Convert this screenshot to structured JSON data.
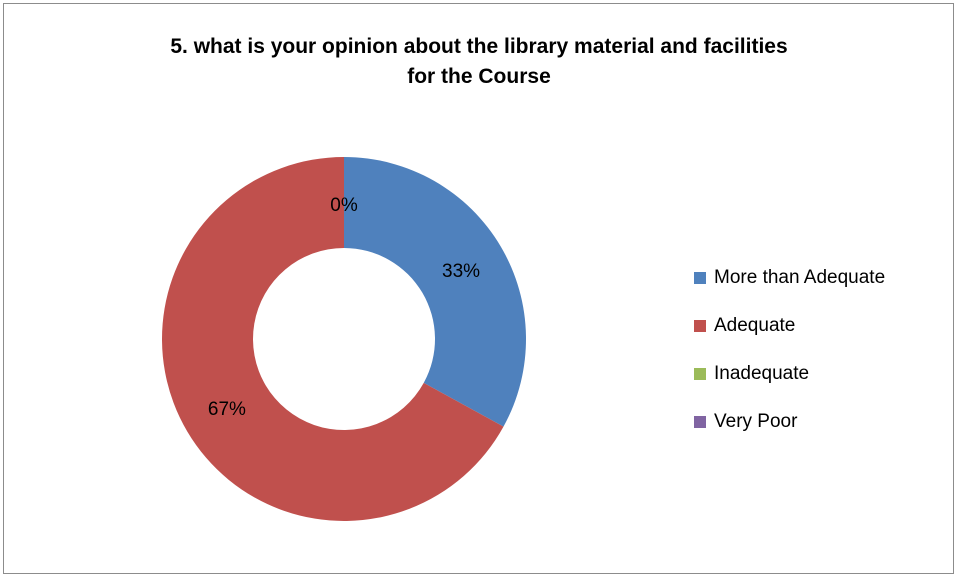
{
  "chart_data": {
    "type": "pie",
    "variant": "donut",
    "title": "5. what is your opinion about the library material and facilities for the Course",
    "title_lines": [
      "5. what is your opinion about the library material and facilities",
      "for the Course"
    ],
    "categories": [
      "More than Adequate",
      "Adequate",
      "Inadequate",
      "Very Poor"
    ],
    "values": [
      33,
      67,
      0,
      0
    ],
    "data_labels": [
      "33%",
      "67%",
      "0%",
      ""
    ],
    "colors": [
      "#4f81bd",
      "#c0504d",
      "#9bbb59",
      "#8064a2"
    ],
    "legend_position": "right"
  }
}
